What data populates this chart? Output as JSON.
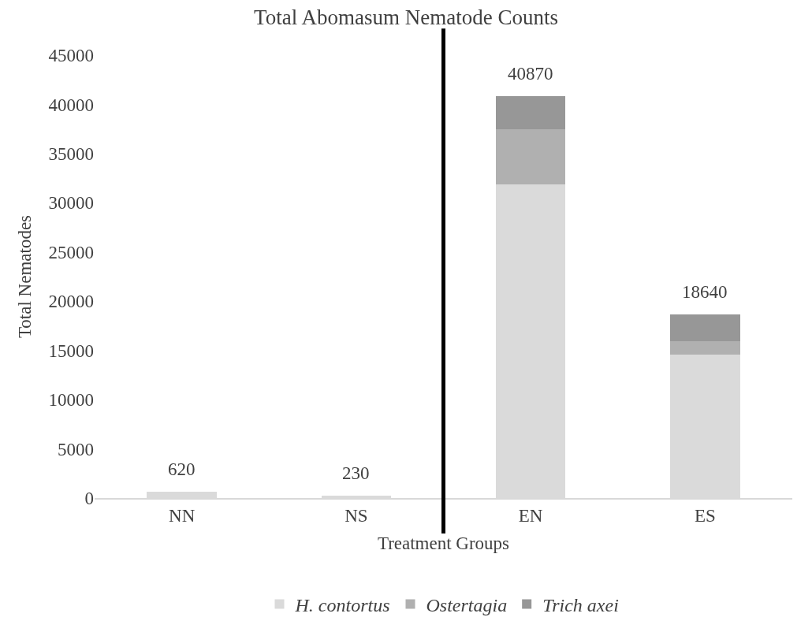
{
  "chart_data": {
    "type": "bar",
    "title": "Total Abomasum Nematode Counts",
    "xlabel": "Treatment Groups",
    "ylabel": "Total Nematodes",
    "categories": [
      "NN",
      "NS",
      "EN",
      "ES"
    ],
    "series": [
      {
        "name": "H. contortus",
        "color": "#dadada",
        "values": [
          620,
          230,
          31900,
          14600
        ]
      },
      {
        "name": "Ostertagia",
        "color": "#b0b0b0",
        "values": [
          0,
          0,
          5600,
          1300
        ]
      },
      {
        "name": "Trich axei",
        "color": "#979797",
        "values": [
          0,
          0,
          3370,
          2740
        ]
      }
    ],
    "stacked": true,
    "totals": [
      "620",
      "230",
      "40870",
      "18640"
    ],
    "ylim": [
      0,
      45000
    ],
    "yticks": [
      0,
      5000,
      10000,
      15000,
      20000,
      25000,
      30000,
      35000,
      40000,
      45000
    ],
    "legend": "bottom"
  }
}
